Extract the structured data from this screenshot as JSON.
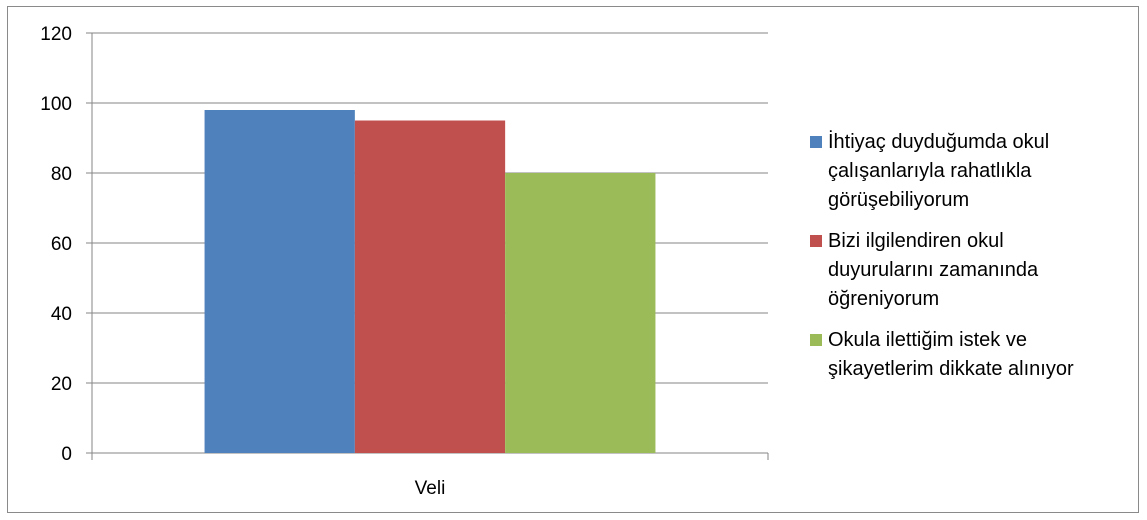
{
  "chart_data": {
    "type": "bar",
    "categories": [
      "Veli"
    ],
    "series": [
      {
        "name": "İhtiyaç duyduğumda okul çalışanlarıyla rahatlıkla görüşebiliyorum",
        "values": [
          98
        ],
        "color": "#4F81BD"
      },
      {
        "name": "Bizi ilgilendiren okul duyurularını zamanında öğreniyorum",
        "values": [
          95
        ],
        "color": "#C0504D"
      },
      {
        "name": "Okula ilettiğim istek ve şikayetlerim dikkate alınıyor",
        "values": [
          80
        ],
        "color": "#9BBB59"
      }
    ],
    "ylim": [
      0,
      120
    ],
    "yticks": [
      "0",
      "20",
      "40",
      "60",
      "80",
      "100",
      "120"
    ],
    "grid": true,
    "legend_position": "right"
  },
  "legend_lines": [
    [
      "İhtiyaç duyduğumda okul",
      "çalışanlarıyla rahatlıkla",
      "görüşebiliyorum"
    ],
    [
      "Bizi ilgilendiren okul",
      "duyurularını zamanında",
      "öğreniyorum"
    ],
    [
      "Okula ilettiğim istek ve",
      "şikayetlerim dikkate alınıyor"
    ]
  ]
}
